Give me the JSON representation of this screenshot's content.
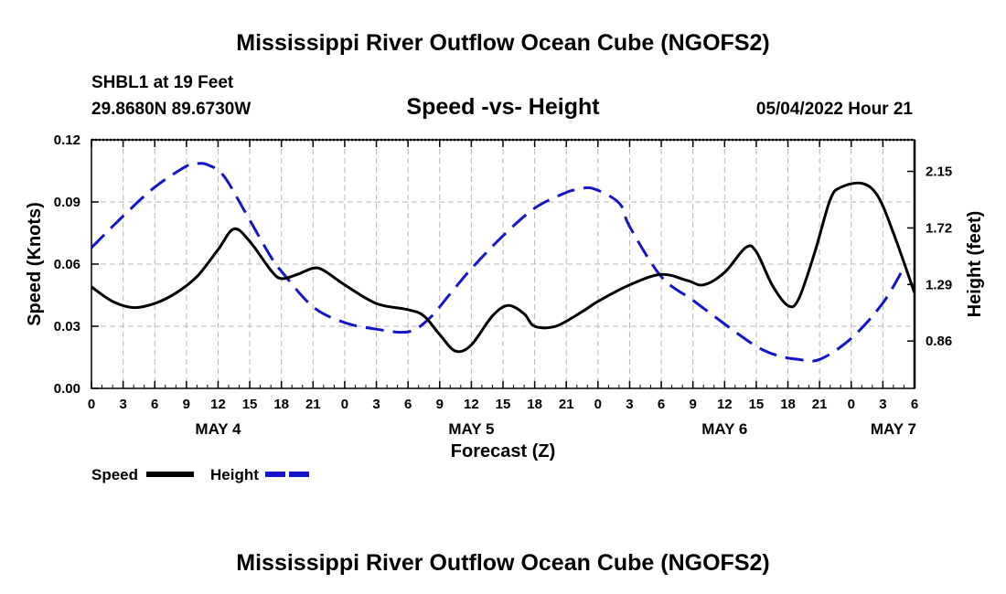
{
  "page": {
    "title_top": "Mississippi River Outflow Ocean Cube (NGOFS2)",
    "title_bottom": "Mississippi River Outflow Ocean Cube (NGOFS2)",
    "station": "SHBL1 at 19 Feet",
    "coordinates": "29.8680N  89.6730W",
    "timestamp": "05/04/2022 Hour 21"
  },
  "legend": {
    "speed_label": "Speed",
    "height_label": "Height"
  },
  "chart_data": {
    "type": "line",
    "title": "Speed -vs- Height",
    "xlabel": "Forecast (Z)",
    "ylabel_left": "Speed (Knots)",
    "ylabel_right": "Height (feet)",
    "grid": true,
    "x_unit": "hours since 2022-05-04 00Z",
    "xlim": [
      0,
      78
    ],
    "ylim_left": [
      0,
      0.12
    ],
    "ylim_right": [
      0.5,
      2.39
    ],
    "x_ticks": [
      0,
      3,
      6,
      9,
      12,
      15,
      18,
      21,
      24,
      27,
      30,
      33,
      36,
      39,
      42,
      45,
      48,
      51,
      54,
      57,
      60,
      63,
      66,
      69,
      72,
      75,
      78
    ],
    "x_tick_labels": [
      "0",
      "3",
      "6",
      "9",
      "12",
      "15",
      "18",
      "21",
      "0",
      "3",
      "6",
      "9",
      "12",
      "15",
      "18",
      "21",
      "0",
      "3",
      "6",
      "9",
      "12",
      "15",
      "18",
      "21",
      "0",
      "3",
      "6"
    ],
    "y_ticks_left": [
      0,
      0.03,
      0.06,
      0.09,
      0.12
    ],
    "y_tick_labels_left": [
      "0.00",
      "0.03",
      "0.06",
      "0.09",
      "0.12"
    ],
    "y_ticks_right": [
      0.86,
      1.29,
      1.72,
      2.15
    ],
    "y_tick_labels_right": [
      "0.86",
      "1.29",
      "1.72",
      "2.15"
    ],
    "date_labels": [
      {
        "x": 12,
        "label": "MAY 4"
      },
      {
        "x": 36,
        "label": "MAY 5"
      },
      {
        "x": 60,
        "label": "MAY 6"
      },
      {
        "x": 76,
        "label": "MAY 7"
      }
    ],
    "series": [
      {
        "name": "Speed",
        "axis": "left",
        "color": "#000000",
        "style": "solid",
        "x": [
          0,
          2,
          4,
          6,
          8,
          10,
          12,
          13.5,
          15,
          17,
          18,
          19.5,
          21,
          22,
          24,
          27,
          30,
          31.5,
          33,
          34.5,
          36,
          38,
          39.5,
          41,
          42,
          44,
          46.5,
          48,
          51,
          54,
          56.5,
          58,
          60,
          62,
          63,
          64.5,
          66,
          67,
          68.5,
          70,
          71,
          73,
          74.5,
          76,
          78
        ],
        "values": [
          0.049,
          0.042,
          0.039,
          0.041,
          0.046,
          0.054,
          0.067,
          0.077,
          0.071,
          0.057,
          0.053,
          0.055,
          0.058,
          0.057,
          0.05,
          0.041,
          0.038,
          0.035,
          0.026,
          0.018,
          0.021,
          0.035,
          0.04,
          0.036,
          0.03,
          0.03,
          0.037,
          0.042,
          0.05,
          0.055,
          0.052,
          0.05,
          0.056,
          0.068,
          0.066,
          0.05,
          0.04,
          0.043,
          0.065,
          0.091,
          0.097,
          0.099,
          0.093,
          0.075,
          0.046
        ]
      },
      {
        "name": "Height",
        "axis": "right",
        "color": "#1414c8",
        "style": "dashed",
        "x": [
          0,
          3,
          6,
          9,
          10,
          11,
          12.5,
          14.5,
          17,
          18,
          21,
          24,
          27,
          30,
          32,
          34,
          36,
          39,
          42,
          45,
          46,
          47.5,
          50,
          51,
          54,
          57,
          60,
          63,
          65,
          67,
          69,
          72,
          75,
          77
        ],
        "values": [
          1.57,
          1.81,
          2.03,
          2.19,
          2.21,
          2.2,
          2.12,
          1.85,
          1.5,
          1.39,
          1.12,
          1.0,
          0.95,
          0.93,
          1.03,
          1.22,
          1.41,
          1.66,
          1.87,
          1.99,
          2.01,
          2.02,
          1.91,
          1.73,
          1.35,
          1.17,
          0.99,
          0.82,
          0.75,
          0.72,
          0.72,
          0.88,
          1.15,
          1.42
        ]
      }
    ]
  }
}
